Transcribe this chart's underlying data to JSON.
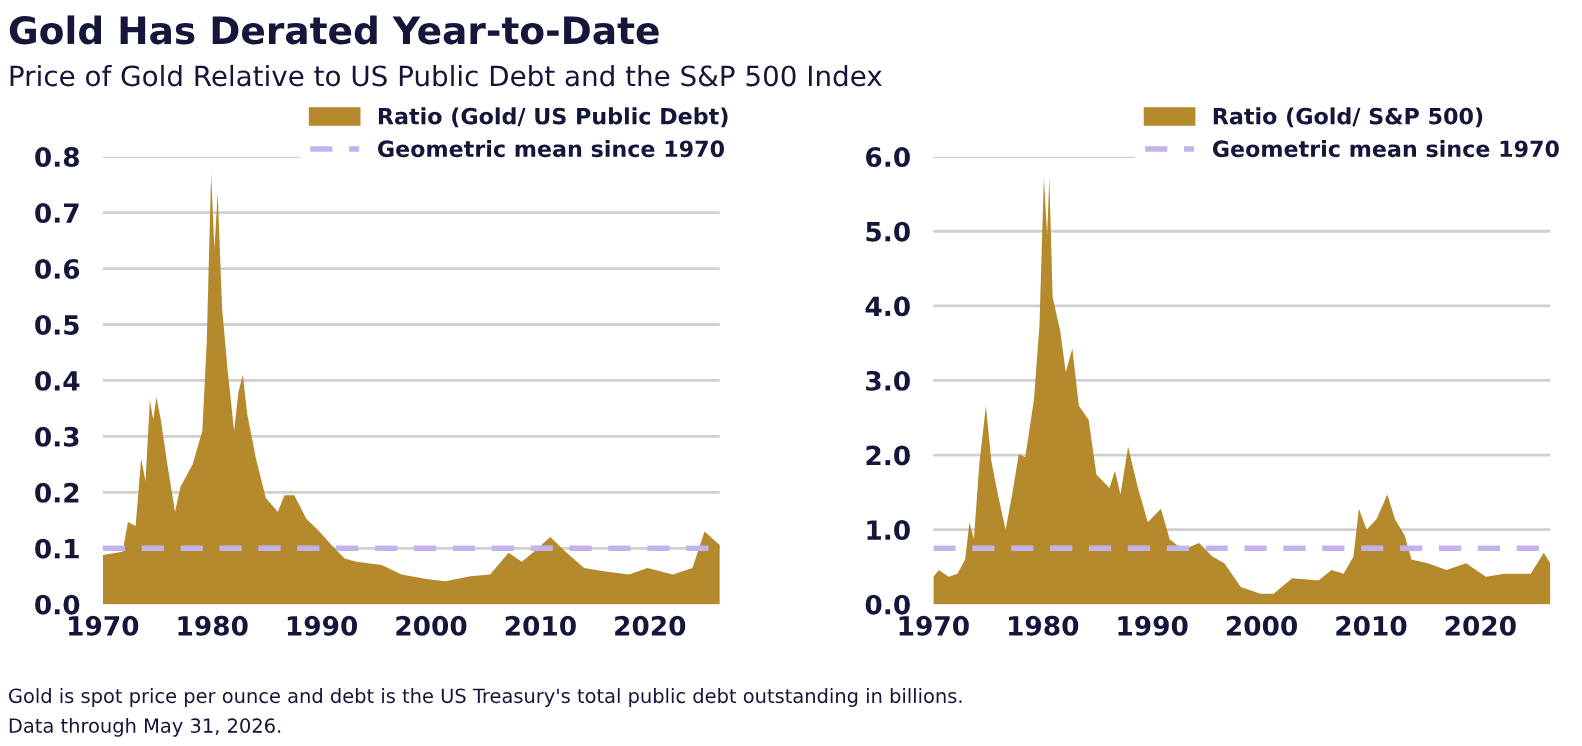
{
  "chart_data": [
    {
      "type": "area",
      "title": "Gold Has Derated Year-to-Date",
      "subtitle": "Price of Gold Relative to US Public Debt and the S&P 500 Index",
      "annotations": [
        "Gold is spot price per ounce and debt is the US Treasury's total public debt outstanding in billions.",
        "Data through May 31, 2026."
      ],
      "xlim": [
        1970,
        2026.4
      ],
      "xticks": [
        1970,
        1980,
        1990,
        2000,
        2010,
        2020
      ],
      "ylim": [
        0,
        0.8
      ],
      "yticks": [
        {
          "value": 0,
          "label": "0.0"
        },
        0.1,
        0.2,
        0.3,
        0.4,
        0.5,
        0.6,
        0.7,
        0.8
      ],
      "grid": "y",
      "legend": "top right",
      "ref_lines": [
        {
          "axis": "y",
          "value": 0.1,
          "label": "Geometric mean since 1970",
          "color": "#c3b3ec",
          "line_style": "dashed"
        }
      ],
      "series": [
        {
          "name": "Ratio (Gold/ US Public Debt)",
          "color": "#b58a2c",
          "x": [
            1970.0,
            1971.8,
            1972.3,
            1973.0,
            1973.5,
            1973.9,
            1974.3,
            1974.6,
            1974.9,
            1975.3,
            1975.9,
            1976.6,
            1977.1,
            1978.2,
            1979.1,
            1979.5,
            1979.9,
            1980.2,
            1980.5,
            1980.9,
            1981.4,
            1982.0,
            1982.4,
            1982.8,
            1983.2,
            1984.0,
            1984.9,
            1986.0,
            1986.6,
            1987.5,
            1988.6,
            1989.8,
            1990.9,
            1992.1,
            1993.2,
            1995.5,
            1997.3,
            1999.6,
            2001.3,
            2003.6,
            2005.4,
            2007.1,
            2008.3,
            2009.4,
            2010.9,
            2012.3,
            2014.0,
            2015.8,
            2018.1,
            2019.8,
            2022.1,
            2023.9,
            2025.0,
            2026.4
          ],
          "values": [
            0.088,
            0.094,
            0.147,
            0.14,
            0.26,
            0.22,
            0.365,
            0.33,
            0.37,
            0.33,
            0.25,
            0.165,
            0.21,
            0.25,
            0.31,
            0.47,
            0.77,
            0.635,
            0.735,
            0.53,
            0.42,
            0.31,
            0.38,
            0.41,
            0.34,
            0.26,
            0.19,
            0.165,
            0.195,
            0.195,
            0.153,
            0.13,
            0.106,
            0.082,
            0.076,
            0.07,
            0.053,
            0.045,
            0.041,
            0.05,
            0.053,
            0.092,
            0.076,
            0.094,
            0.12,
            0.094,
            0.065,
            0.059,
            0.053,
            0.065,
            0.053,
            0.065,
            0.13,
            0.106
          ]
        }
      ]
    },
    {
      "type": "area",
      "xlim": [
        1970,
        2026.4
      ],
      "xticks": [
        1970,
        1980,
        1990,
        2000,
        2010,
        2020
      ],
      "ylim": [
        0,
        6.0
      ],
      "yticks": [
        {
          "value": 0,
          "label": "0.0"
        },
        {
          "value": 1,
          "label": "1.0"
        },
        {
          "value": 2,
          "label": "2.0"
        },
        {
          "value": 3,
          "label": "3.0"
        },
        {
          "value": 4,
          "label": "4.0"
        },
        {
          "value": 5,
          "label": "5.0"
        },
        {
          "value": 6,
          "label": "6.0"
        }
      ],
      "grid": "y",
      "legend": "top right",
      "ref_lines": [
        {
          "axis": "y",
          "value": 0.75,
          "label": "Geometric mean since 1970",
          "color": "#c3b3ec",
          "line_style": "dashed"
        }
      ],
      "series": [
        {
          "name": "Ratio (Gold/ S&P 500)",
          "color": "#b58a2c",
          "x": [
            1970.0,
            1970.5,
            1971.4,
            1972.2,
            1972.9,
            1973.3,
            1973.7,
            1974.2,
            1974.8,
            1975.3,
            1975.9,
            1976.6,
            1977.2,
            1977.8,
            1978.4,
            1979.2,
            1979.7,
            1980.1,
            1980.4,
            1980.6,
            1980.9,
            1981.6,
            1982.1,
            1982.7,
            1983.3,
            1984.2,
            1984.9,
            1986.1,
            1986.6,
            1987.1,
            1987.8,
            1988.7,
            1989.6,
            1990.8,
            1991.6,
            1992.8,
            1994.3,
            1995.5,
            1996.6,
            1998.1,
            1999.9,
            2001.1,
            2002.8,
            2005.2,
            2006.4,
            2007.5,
            2008.4,
            2008.9,
            2009.6,
            2010.5,
            2011.5,
            2012.2,
            2013.1,
            2013.7,
            2015.2,
            2016.9,
            2018.7,
            2020.5,
            2022.2,
            2024.6,
            2025.8,
            2026.4
          ],
          "values": [
            0.37,
            0.46,
            0.37,
            0.41,
            0.6,
            1.1,
            0.87,
            1.88,
            2.66,
            1.92,
            1.47,
            1.0,
            1.47,
            2.01,
            1.97,
            2.75,
            3.75,
            5.72,
            4.95,
            5.72,
            4.12,
            3.66,
            3.11,
            3.43,
            2.66,
            2.47,
            1.74,
            1.56,
            1.79,
            1.47,
            2.11,
            1.56,
            1.1,
            1.28,
            0.87,
            0.73,
            0.82,
            0.64,
            0.55,
            0.23,
            0.14,
            0.14,
            0.35,
            0.32,
            0.46,
            0.41,
            0.64,
            1.28,
            1.0,
            1.14,
            1.47,
            1.14,
            0.92,
            0.6,
            0.55,
            0.46,
            0.55,
            0.37,
            0.41,
            0.41,
            0.69,
            0.55
          ]
        }
      ]
    }
  ]
}
